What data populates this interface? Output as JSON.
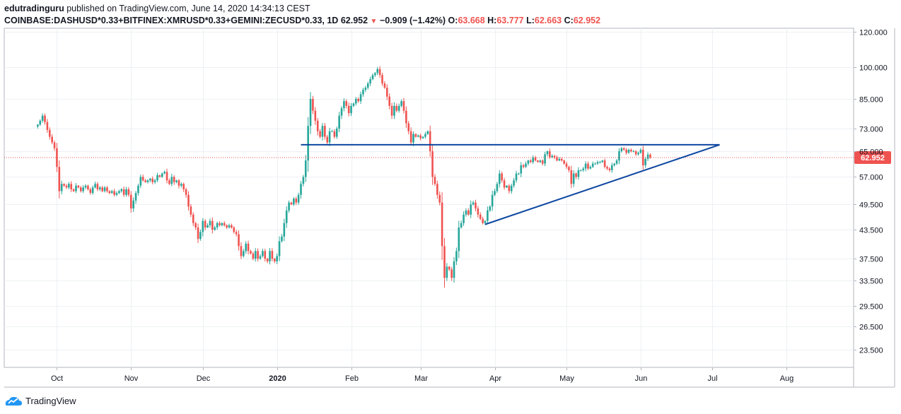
{
  "header": {
    "author": "edutradinguru",
    "published_text": "published on TradingView.com, June 14, 2020 14:34:13 CEST",
    "symbol": "COINBASE:DASHUSD*0.33+BITFINEX:XMRUSD*0.33+GEMINI:ZECUSD*0.33, 1D",
    "last_price": "62.952",
    "change_arrow_icon": "triangle-down-icon",
    "change": "−0.909 (−1.42%)",
    "open_label": "O:",
    "open": "63.668",
    "high_label": "H:",
    "high": "63.777",
    "low_label": "L:",
    "low": "62.663",
    "close_label": "C:",
    "close": "62.952"
  },
  "footer": {
    "logo_icon": "tradingview-logo-icon",
    "brand": "TradingView"
  },
  "chart_data": {
    "type": "candlestick",
    "scale": "log",
    "grid": true,
    "colors": {
      "up": "#26a69a",
      "down": "#ef5350",
      "drawings": "#0d47a1",
      "price_line": "#ef5350"
    },
    "x_range": [
      "2019-09-09",
      "2020-08-29"
    ],
    "y_range": [
      21.5,
      122
    ],
    "y_ticks": [
      "120.000",
      "100.000",
      "85.000",
      "73.000",
      "65.000",
      "57.000",
      "49.500",
      "43.500",
      "37.500",
      "33.500",
      "29.500",
      "26.500",
      "23.500"
    ],
    "y_tick_values": [
      120,
      100,
      85,
      73,
      65,
      57,
      49.5,
      43.5,
      37.5,
      33.5,
      29.5,
      26.5,
      23.5
    ],
    "x_ticks": [
      {
        "label": "Oct",
        "date": "2019-10-01",
        "bold": false
      },
      {
        "label": "Nov",
        "date": "2019-11-01",
        "bold": false
      },
      {
        "label": "Dec",
        "date": "2019-12-01",
        "bold": false
      },
      {
        "label": "2020",
        "date": "2020-01-01",
        "bold": true
      },
      {
        "label": "Feb",
        "date": "2020-02-01",
        "bold": false
      },
      {
        "label": "Mar",
        "date": "2020-03-01",
        "bold": false
      },
      {
        "label": "Apr",
        "date": "2020-04-01",
        "bold": false
      },
      {
        "label": "May",
        "date": "2020-05-01",
        "bold": false
      },
      {
        "label": "Jun",
        "date": "2020-06-01",
        "bold": false
      },
      {
        "label": "Jul",
        "date": "2020-07-01",
        "bold": false
      },
      {
        "label": "Aug",
        "date": "2020-08-01",
        "bold": false
      }
    ],
    "last_price_label": "62.952",
    "last_price_value": 62.952,
    "start_date": "2019-09-23",
    "closes": [
      74.5,
      76,
      78,
      75.5,
      72.5,
      70,
      68,
      66,
      60,
      53,
      55,
      54.5,
      54,
      55,
      53.5,
      53,
      54.5,
      54,
      53,
      54,
      54.5,
      53.5,
      52.5,
      54,
      55,
      53.5,
      54,
      53,
      54,
      53,
      52.5,
      53,
      52,
      52.5,
      53,
      53.5,
      52,
      53.5,
      52,
      48.5,
      50.5,
      52.5,
      54.5,
      57,
      56,
      55.5,
      56,
      56.5,
      55.5,
      56,
      57.5,
      57,
      58,
      58.5,
      56,
      55,
      57,
      55.5,
      56,
      54.5,
      55,
      53.5,
      52,
      49,
      47,
      45,
      44,
      41.5,
      43,
      45.5,
      44,
      44.5,
      45.5,
      43.5,
      44,
      45,
      44.5,
      45,
      44.5,
      44,
      44.5,
      44,
      43,
      42.5,
      40,
      38,
      39,
      40.5,
      39,
      38.5,
      37.5,
      39,
      37.5,
      38,
      39,
      37.5,
      37,
      39,
      37.5,
      37,
      38,
      41,
      42,
      45,
      48,
      50,
      49.5,
      51,
      50,
      52,
      55,
      57,
      62,
      74,
      85,
      80,
      76,
      72,
      70,
      74,
      70,
      68,
      72,
      72,
      70,
      73,
      78,
      81,
      84,
      82,
      79,
      82,
      83,
      85,
      84,
      87,
      89,
      90,
      92,
      94,
      96,
      97,
      99,
      96,
      92,
      90,
      86,
      82,
      78,
      82,
      80,
      82,
      84,
      80,
      75,
      72,
      68,
      71,
      70,
      70.5,
      69.5,
      70,
      71,
      72,
      65,
      57,
      55,
      52,
      50,
      40,
      34,
      36,
      35.5,
      34,
      37,
      39,
      44,
      45,
      47,
      48,
      47,
      49.5,
      50,
      48.5,
      47,
      46,
      45,
      45.5,
      48,
      49,
      52,
      53,
      55,
      58,
      56,
      54,
      54.5,
      53,
      54.5,
      56,
      58,
      58,
      60.5,
      60,
      61,
      62,
      61.5,
      63,
      62,
      61.5,
      62,
      61,
      64,
      65,
      63,
      63.5,
      63,
      62,
      62.5,
      62,
      61,
      60,
      59,
      55,
      58,
      57,
      59,
      59,
      59.5,
      61,
      59.5,
      60,
      61,
      61,
      61.5,
      61.5,
      62,
      60,
      59.5,
      59,
      60.5,
      61,
      62,
      65,
      66,
      65.5,
      64.5,
      65.5,
      65,
      65,
      64,
      64.5,
      65.5,
      60.5,
      62.5,
      63.9,
      62.952
    ]
  }
}
